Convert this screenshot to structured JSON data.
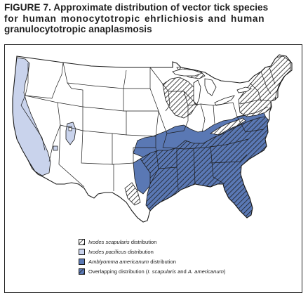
{
  "figure": {
    "title_lines": [
      "FIGURE 7. Approximate distribution of vector tick species",
      "for human monocytotropic ehrlichiosis and human",
      "granulocytotropic anaplasmosis"
    ]
  },
  "legend": {
    "items": [
      {
        "name": "scapularis",
        "italic": "Ixodes scapularis",
        "rest": " distribution",
        "fill": "hatch-scapularis"
      },
      {
        "name": "pacificus",
        "italic": "Ixodes pacificus",
        "rest": " distribution",
        "fill": "#c9d3ec"
      },
      {
        "name": "americanum",
        "italic": "Amblyomma americanum",
        "rest": " distribution",
        "fill": "#5a78b4"
      },
      {
        "name": "overlap",
        "text_before": "Overlapping distribution (",
        "italic": "I. scapularis",
        "text_mid": " and ",
        "italic2": "A. americanum",
        "text_after": ")",
        "fill": "hatch-overlap"
      }
    ]
  },
  "colors": {
    "americanum": "#5a78b4",
    "pacificus": "#c9d3ec",
    "outline": "#1a1a1a",
    "hatch_line": "#1a1a1a"
  }
}
